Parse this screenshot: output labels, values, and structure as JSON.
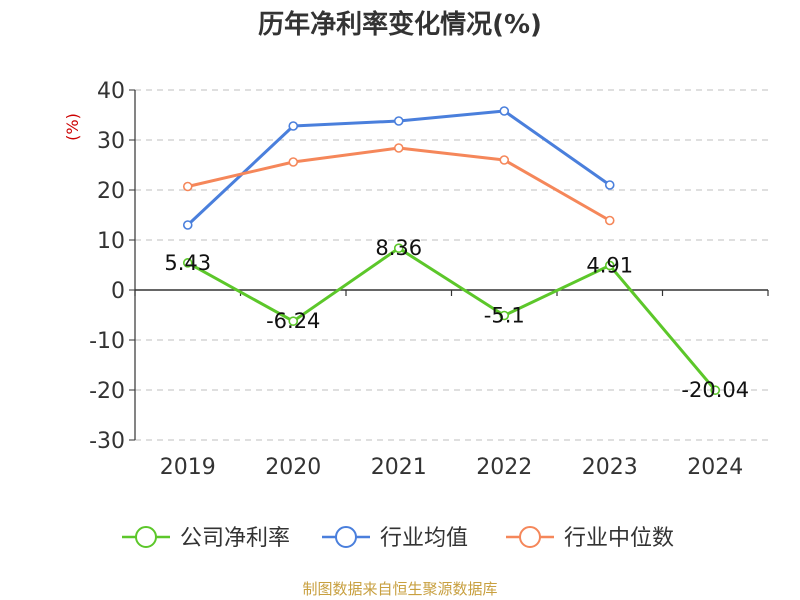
{
  "chart_data": {
    "type": "line",
    "title": "历年净利率变化情况(%)",
    "ylabel": "(%)",
    "categories": [
      "2019",
      "2020",
      "2021",
      "2022",
      "2023",
      "2024"
    ],
    "ylim": [
      -30,
      40
    ],
    "yticks": [
      40,
      30,
      20,
      10,
      0,
      -10,
      -20,
      -30
    ],
    "grid": true,
    "legend_position": "bottom",
    "series": [
      {
        "name": "公司净利率",
        "color": "#5cc72a",
        "values": [
          5.43,
          -6.24,
          8.36,
          -5.1,
          4.91,
          -20.04
        ],
        "labels": [
          "5.43",
          "-6.24",
          "8.36",
          "-5.1",
          "4.91",
          "-20.04"
        ]
      },
      {
        "name": "行业均值",
        "color": "#4a7fdc",
        "values": [
          13,
          32.8,
          33.8,
          35.8,
          21,
          null
        ]
      },
      {
        "name": "行业中位数",
        "color": "#f5875a",
        "values": [
          20.7,
          25.6,
          28.4,
          26,
          13.9,
          null
        ]
      }
    ]
  },
  "colors": {
    "title": "#333333",
    "unit": "#cc0000",
    "source": "#c8a040",
    "axis": "#333333",
    "grid": "#cccccc"
  },
  "source_text": "制图数据来自恒生聚源数据库"
}
